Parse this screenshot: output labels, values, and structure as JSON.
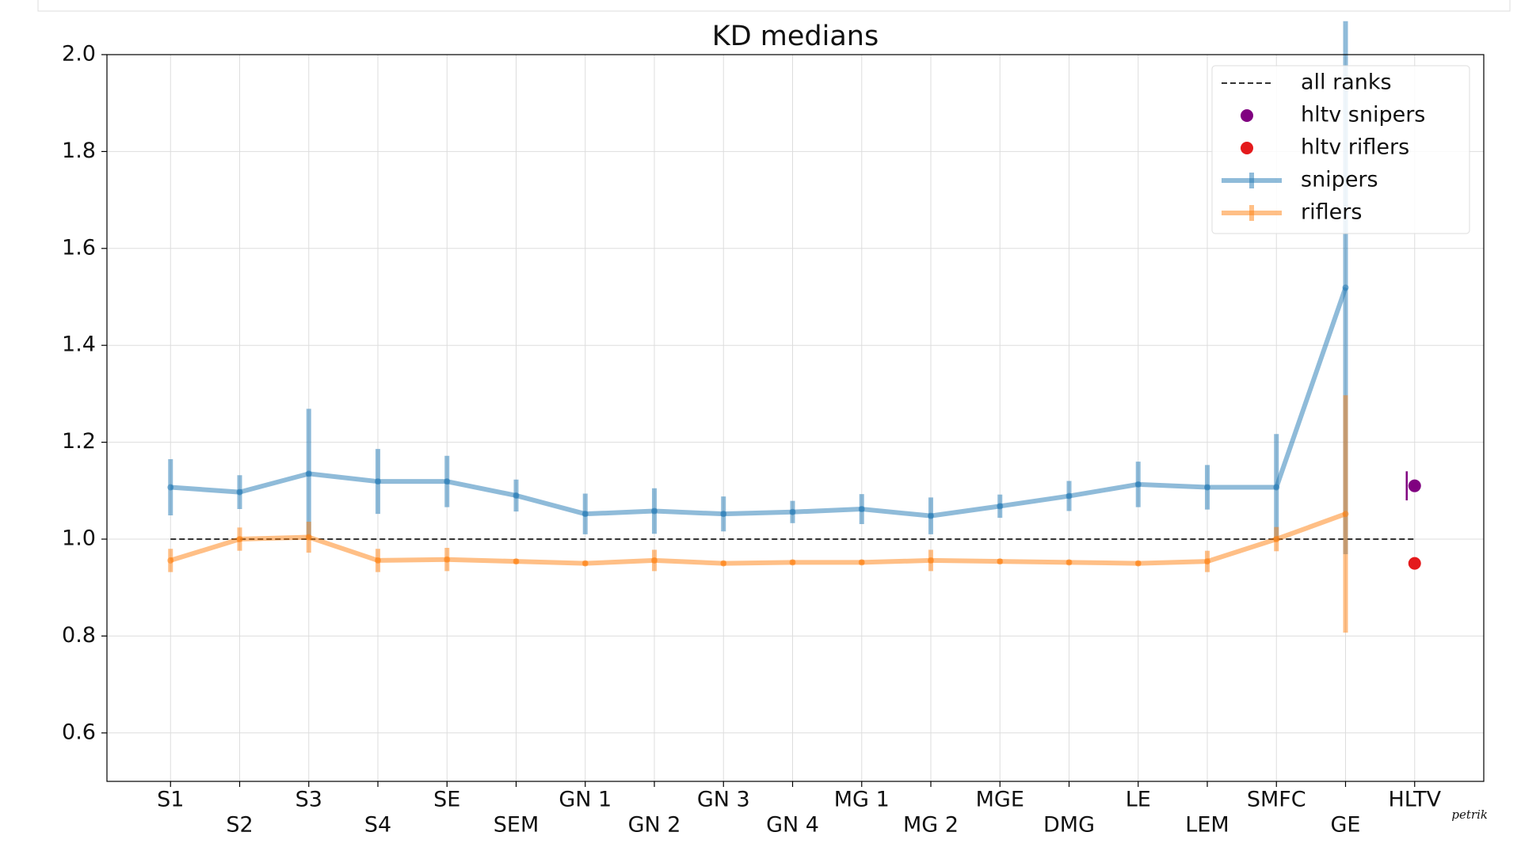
{
  "chart_data": {
    "type": "line",
    "title": "KD medians",
    "categories": [
      "S1",
      "S2",
      "S3",
      "S4",
      "SE",
      "SEM",
      "GN 1",
      "GN 2",
      "GN 3",
      "GN 4",
      "MG 1",
      "MG 2",
      "MGE",
      "DMG",
      "LE",
      "LEM",
      "SMFC",
      "GE",
      "HLTV"
    ],
    "series": [
      {
        "name": "snipers",
        "color": "#1f77b4",
        "values": [
          1.107,
          1.097,
          1.135,
          1.119,
          1.119,
          1.09,
          1.052,
          1.058,
          1.052,
          1.056,
          1.062,
          1.048,
          1.068,
          1.089,
          1.113,
          1.107,
          1.107,
          1.519,
          null
        ],
        "errors": [
          0.058,
          0.035,
          0.134,
          0.067,
          0.053,
          0.033,
          0.042,
          0.047,
          0.036,
          0.023,
          0.031,
          0.038,
          0.024,
          0.031,
          0.047,
          0.046,
          0.11,
          0.55,
          null
        ]
      },
      {
        "name": "riflers",
        "color": "#ff7f0e",
        "values": [
          0.956,
          1.0,
          1.004,
          0.956,
          0.958,
          0.954,
          0.95,
          0.956,
          0.95,
          0.952,
          0.952,
          0.956,
          0.954,
          0.952,
          0.95,
          0.954,
          1.0,
          1.052,
          null
        ],
        "errors": [
          0.024,
          0.024,
          0.032,
          0.024,
          0.024,
          0.005,
          0.005,
          0.022,
          0.005,
          0.005,
          0.005,
          0.022,
          0.005,
          0.005,
          0.005,
          0.022,
          0.025,
          0.245,
          null
        ]
      }
    ],
    "points": [
      {
        "name": "hltv snipers",
        "color": "#800080",
        "value": 1.11,
        "error": 0.03
      },
      {
        "name": "hltv riflers",
        "color": "#e41a1c",
        "value": 0.95
      }
    ],
    "reference_line": {
      "name": "all ranks",
      "value": 1.0
    },
    "ylim": [
      0.5,
      2.0
    ],
    "yticks": [
      {
        "value": 0.6,
        "label": "0.6"
      },
      {
        "value": 0.8,
        "label": "0.8"
      },
      {
        "value": 1.0,
        "label": "1.0"
      },
      {
        "value": 1.2,
        "label": "1.2"
      },
      {
        "value": 1.4,
        "label": "1.4"
      },
      {
        "value": 1.6,
        "label": "1.6"
      },
      {
        "value": 1.8,
        "label": "1.8"
      },
      {
        "value": 2.0,
        "label": "2.0"
      }
    ],
    "grid": true,
    "legend": "upper right",
    "annotation": "petrik"
  }
}
